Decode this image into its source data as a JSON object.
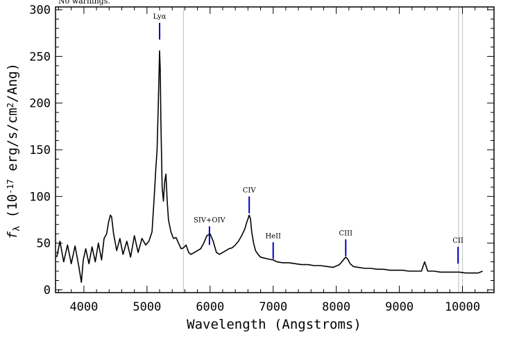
{
  "page": {
    "note": "No warnings."
  },
  "colors": {
    "axis": "#000000",
    "spectrum": "#000000",
    "line_marker": "#0000cc",
    "sky_line": "#c8c8c8"
  },
  "chart_data": {
    "type": "line",
    "title": "",
    "xlabel": "Wavelength (Angstroms)",
    "ylabel": "f_λ (10^-17 erg/s/cm^2/Ang)",
    "xlim": [
      3550,
      10500
    ],
    "ylim": [
      -3,
      303
    ],
    "xticks": [
      4000,
      5000,
      6000,
      7000,
      8000,
      9000,
      10000
    ],
    "yticks": [
      0,
      50,
      100,
      150,
      200,
      250,
      300
    ],
    "grid": false,
    "legend": "none",
    "sky_lines_x": [
      5577,
      9940,
      10000
    ],
    "emission_lines": [
      {
        "label": "Lyα",
        "x": 5200,
        "y_bottom": 268,
        "y_top": 286
      },
      {
        "label": "SIV+OIV",
        "x": 5990,
        "y_bottom": 48,
        "y_top": 68
      },
      {
        "label": "CIV",
        "x": 6620,
        "y_bottom": 82,
        "y_top": 100
      },
      {
        "label": "HeII",
        "x": 7000,
        "y_bottom": 33,
        "y_top": 51
      },
      {
        "label": "CIII",
        "x": 8150,
        "y_bottom": 36,
        "y_top": 54
      },
      {
        "label": "CII",
        "x": 9930,
        "y_bottom": 28,
        "y_top": 46
      }
    ],
    "series": [
      {
        "x": [
          3570,
          3620,
          3680,
          3740,
          3800,
          3860,
          3920,
          3960,
          3990,
          4030,
          4080,
          4130,
          4180,
          4230,
          4280,
          4320,
          4360,
          4390,
          4420,
          4440,
          4470,
          4520,
          4570,
          4620,
          4680,
          4740,
          4800,
          4860,
          4920,
          4980,
          5030,
          5080,
          5110,
          5140,
          5160,
          5180,
          5200,
          5210,
          5220,
          5240,
          5260,
          5280,
          5300,
          5320,
          5340,
          5380,
          5420,
          5460,
          5500,
          5540,
          5580,
          5620,
          5660,
          5700,
          5750,
          5800,
          5850,
          5900,
          5950,
          6000,
          6050,
          6100,
          6150,
          6200,
          6250,
          6300,
          6350,
          6400,
          6450,
          6500,
          6550,
          6580,
          6600,
          6620,
          6640,
          6660,
          6690,
          6720,
          6760,
          6800,
          6860,
          6920,
          7000,
          7060,
          7150,
          7250,
          7350,
          7450,
          7550,
          7650,
          7750,
          7850,
          7950,
          8050,
          8100,
          8150,
          8180,
          8220,
          8270,
          8350,
          8450,
          8550,
          8650,
          8750,
          8850,
          8950,
          9050,
          9150,
          9250,
          9350,
          9400,
          9450,
          9550,
          9650,
          9750,
          9850,
          9950,
          10050,
          10150,
          10250,
          10320
        ],
        "y": [
          35,
          52,
          30,
          48,
          28,
          47,
          25,
          8,
          32,
          44,
          28,
          46,
          30,
          50,
          32,
          55,
          60,
          72,
          80,
          78,
          60,
          42,
          55,
          38,
          52,
          35,
          58,
          40,
          55,
          48,
          52,
          62,
          95,
          130,
          150,
          200,
          256,
          235,
          180,
          110,
          95,
          115,
          124,
          95,
          75,
          62,
          55,
          56,
          50,
          44,
          45,
          48,
          40,
          38,
          40,
          42,
          44,
          50,
          58,
          60,
          52,
          40,
          38,
          40,
          42,
          44,
          45,
          48,
          52,
          58,
          65,
          72,
          76,
          80,
          76,
          62,
          50,
          42,
          38,
          35,
          34,
          33,
          32,
          30,
          29,
          29,
          28,
          27,
          27,
          26,
          26,
          25,
          24,
          27,
          31,
          35,
          33,
          28,
          25,
          24,
          23,
          23,
          22,
          22,
          21,
          21,
          21,
          20,
          20,
          20,
          30,
          20,
          20,
          19,
          19,
          19,
          19,
          18,
          18,
          18,
          20
        ]
      }
    ]
  }
}
